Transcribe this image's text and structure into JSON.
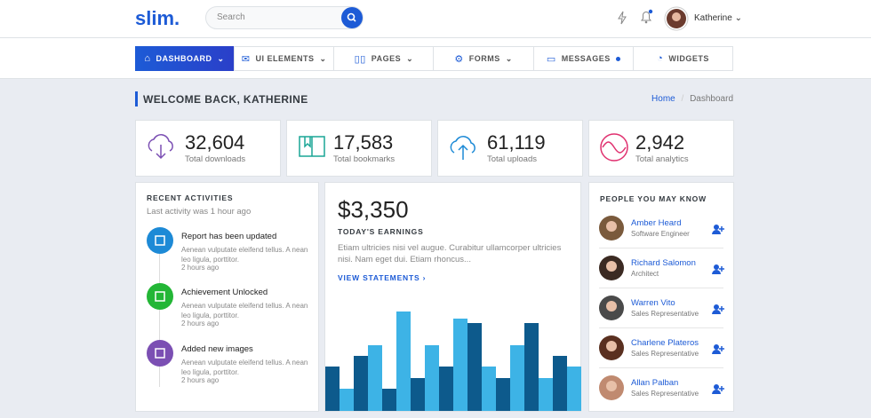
{
  "header": {
    "logo": "slim.",
    "search_placeholder": "Search",
    "user_name": "Katherine"
  },
  "nav": {
    "items": [
      "DASHBOARD",
      "UI ELEMENTS",
      "PAGES",
      "FORMS",
      "MESSAGES",
      "WIDGETS"
    ]
  },
  "page": {
    "title": "WELCOME BACK, KATHERINE",
    "breadcrumb": [
      "Home",
      "Dashboard"
    ]
  },
  "stats": [
    {
      "value": "32,604",
      "label": "Total downloads"
    },
    {
      "value": "17,583",
      "label": "Total bookmarks"
    },
    {
      "value": "61,119",
      "label": "Total uploads"
    },
    {
      "value": "2,942",
      "label": "Total analytics"
    }
  ],
  "activities": {
    "title": "RECENT ACTIVITIES",
    "subtitle": "Last activity was 1 hour ago",
    "items": [
      {
        "title": "Report has been updated",
        "text": "Aenean vulputate eleifend tellus. A nean leo ligula, porttitor.",
        "time": "2 hours ago"
      },
      {
        "title": "Achievement Unlocked",
        "text": "Aenean vulputate eleifend tellus. A nean leo ligula, porttitor.",
        "time": "2 hours ago"
      },
      {
        "title": "Added new images",
        "text": "Aenean vulputate eleifend tellus. A nean leo ligula, porttitor.",
        "time": "2 hours ago"
      }
    ]
  },
  "earnings": {
    "amount": "$3,350",
    "label": "TODAY'S EARNINGS",
    "text": "Etiam ultricies nisi vel augue. Curabitur ullamcorper ultricies nisi. Nam eget dui. Etiam rhoncus...",
    "link": "VIEW STATEMENTS",
    "chart": {
      "type": "bar",
      "colors": [
        "#0d5a8c",
        "#3db3e6"
      ],
      "values": [
        50,
        25,
        62,
        74,
        25,
        112,
        37,
        74,
        50,
        104,
        99,
        50,
        37,
        74,
        99,
        37,
        62,
        50
      ]
    }
  },
  "people": {
    "title": "PEOPLE YOU MAY KNOW",
    "items": [
      {
        "name": "Amber Heard",
        "role": "Software Engineer"
      },
      {
        "name": "Richard Salomon",
        "role": "Architect"
      },
      {
        "name": "Warren Vito",
        "role": "Sales Representative"
      },
      {
        "name": "Charlene Plateros",
        "role": "Sales Representative"
      },
      {
        "name": "Allan Palban",
        "role": "Sales Representative"
      }
    ]
  }
}
